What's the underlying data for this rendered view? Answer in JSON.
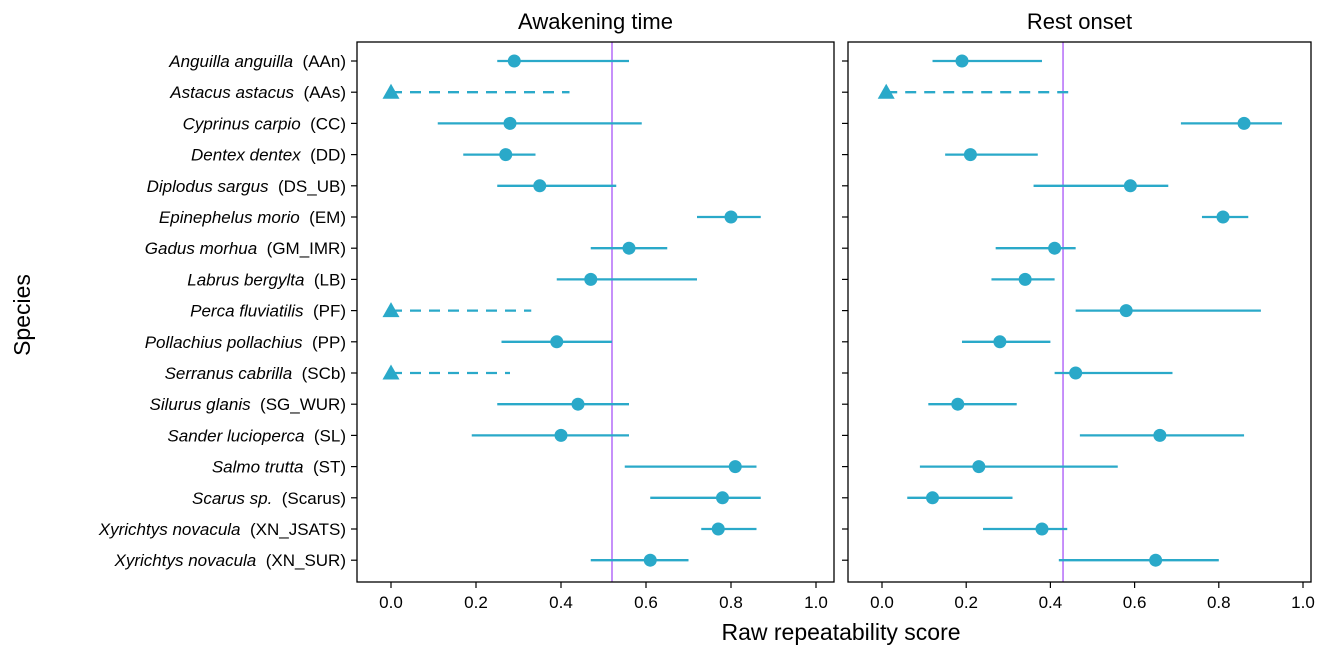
{
  "chart_data": {
    "type": "forest",
    "xlabel": "Raw repeatability score",
    "ylabel": "Species",
    "xlim": [
      0,
      1
    ],
    "x_ticks": [
      "0.0",
      "0.2",
      "0.4",
      "0.6",
      "0.8",
      "1.0"
    ],
    "species": [
      {
        "italic": "Anguilla anguilla",
        "code": "(AAn)"
      },
      {
        "italic": "Astacus astacus",
        "code": "(AAs)"
      },
      {
        "italic": "Cyprinus carpio",
        "code": "(CC)"
      },
      {
        "italic": "Dentex dentex",
        "code": "(DD)"
      },
      {
        "italic": "Diplodus sargus",
        "code": "(DS_UB)"
      },
      {
        "italic": "Epinephelus morio",
        "code": "(EM)"
      },
      {
        "italic": "Gadus morhua",
        "code": "(GM_IMR)"
      },
      {
        "italic": "Labrus bergylta",
        "code": "(LB)"
      },
      {
        "italic": "Perca fluviatilis",
        "code": "(PF)"
      },
      {
        "italic": "Pollachius pollachius",
        "code": "(PP)"
      },
      {
        "italic": "Serranus cabrilla",
        "code": "(SCb)"
      },
      {
        "italic": "Silurus glanis",
        "code": "(SG_WUR)"
      },
      {
        "italic": "Sander lucioperca",
        "code": "(SL)"
      },
      {
        "italic": "Salmo trutta",
        "code": "(ST)"
      },
      {
        "italic": "Scarus sp.",
        "code": "(Scarus)"
      },
      {
        "italic": "Xyrichtys novacula",
        "code": "(XN_JSATS)"
      },
      {
        "italic": "Xyrichtys novacula",
        "code": "(XN_SUR)"
      }
    ],
    "panels": [
      {
        "title": "Awakening time",
        "reference_line": 0.52,
        "points": [
          {
            "est": 0.29,
            "lo": 0.25,
            "hi": 0.56,
            "marker": "circle"
          },
          {
            "est": 0.0,
            "lo": 0.0,
            "hi": 0.42,
            "marker": "triangle"
          },
          {
            "est": 0.28,
            "lo": 0.11,
            "hi": 0.59,
            "marker": "circle"
          },
          {
            "est": 0.27,
            "lo": 0.17,
            "hi": 0.34,
            "marker": "circle"
          },
          {
            "est": 0.35,
            "lo": 0.25,
            "hi": 0.53,
            "marker": "circle"
          },
          {
            "est": 0.8,
            "lo": 0.72,
            "hi": 0.87,
            "marker": "circle"
          },
          {
            "est": 0.56,
            "lo": 0.47,
            "hi": 0.65,
            "marker": "circle"
          },
          {
            "est": 0.47,
            "lo": 0.39,
            "hi": 0.72,
            "marker": "circle"
          },
          {
            "est": 0.0,
            "lo": 0.0,
            "hi": 0.33,
            "marker": "triangle"
          },
          {
            "est": 0.39,
            "lo": 0.26,
            "hi": 0.52,
            "marker": "circle"
          },
          {
            "est": 0.0,
            "lo": 0.0,
            "hi": 0.28,
            "marker": "triangle"
          },
          {
            "est": 0.44,
            "lo": 0.25,
            "hi": 0.56,
            "marker": "circle"
          },
          {
            "est": 0.4,
            "lo": 0.19,
            "hi": 0.56,
            "marker": "circle"
          },
          {
            "est": 0.81,
            "lo": 0.55,
            "hi": 0.86,
            "marker": "circle"
          },
          {
            "est": 0.78,
            "lo": 0.61,
            "hi": 0.87,
            "marker": "circle"
          },
          {
            "est": 0.77,
            "lo": 0.73,
            "hi": 0.86,
            "marker": "circle"
          },
          {
            "est": 0.61,
            "lo": 0.47,
            "hi": 0.7,
            "marker": "circle"
          }
        ]
      },
      {
        "title": "Rest onset",
        "reference_line": 0.43,
        "points": [
          {
            "est": 0.19,
            "lo": 0.12,
            "hi": 0.38,
            "marker": "circle"
          },
          {
            "est": 0.01,
            "lo": 0.01,
            "hi": 0.46,
            "marker": "triangle"
          },
          {
            "est": 0.86,
            "lo": 0.71,
            "hi": 0.95,
            "marker": "circle"
          },
          {
            "est": 0.21,
            "lo": 0.15,
            "hi": 0.37,
            "marker": "circle"
          },
          {
            "est": 0.59,
            "lo": 0.36,
            "hi": 0.68,
            "marker": "circle"
          },
          {
            "est": 0.81,
            "lo": 0.76,
            "hi": 0.87,
            "marker": "circle"
          },
          {
            "est": 0.41,
            "lo": 0.27,
            "hi": 0.46,
            "marker": "circle"
          },
          {
            "est": 0.34,
            "lo": 0.26,
            "hi": 0.41,
            "marker": "circle"
          },
          {
            "est": 0.58,
            "lo": 0.46,
            "hi": 0.9,
            "marker": "circle"
          },
          {
            "est": 0.28,
            "lo": 0.19,
            "hi": 0.4,
            "marker": "circle"
          },
          {
            "est": 0.46,
            "lo": 0.41,
            "hi": 0.69,
            "marker": "circle"
          },
          {
            "est": 0.18,
            "lo": 0.11,
            "hi": 0.32,
            "marker": "circle"
          },
          {
            "est": 0.66,
            "lo": 0.47,
            "hi": 0.86,
            "marker": "circle"
          },
          {
            "est": 0.23,
            "lo": 0.09,
            "hi": 0.56,
            "marker": "circle"
          },
          {
            "est": 0.12,
            "lo": 0.06,
            "hi": 0.31,
            "marker": "circle"
          },
          {
            "est": 0.38,
            "lo": 0.24,
            "hi": 0.44,
            "marker": "circle"
          },
          {
            "est": 0.65,
            "lo": 0.42,
            "hi": 0.8,
            "marker": "circle"
          }
        ]
      }
    ],
    "colors": {
      "series": "#2AA9C9",
      "reference_line": "#A855F7",
      "frame": "#000000"
    },
    "grid": false,
    "legend": "none"
  }
}
